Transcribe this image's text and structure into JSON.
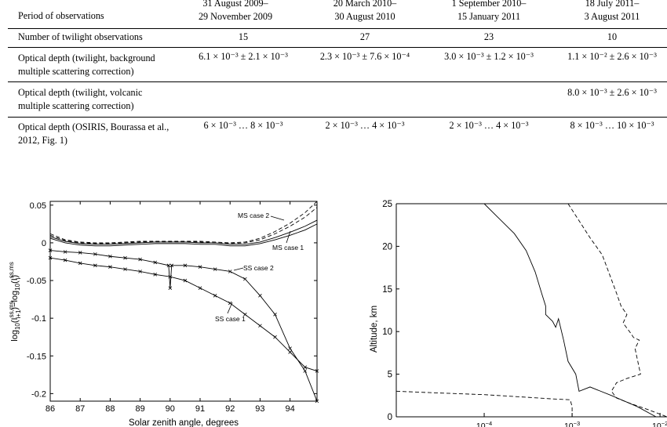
{
  "table": {
    "periods_label": "Period of observations",
    "periods": [
      [
        "31 August 2009–",
        "29 November 2009"
      ],
      [
        "20 March 2010–",
        "30 August 2010"
      ],
      [
        "1 September 2010–",
        "15 January 2011"
      ],
      [
        "18 July 2011–",
        "3 August 2011"
      ]
    ],
    "rows": [
      {
        "label": "Number of twilight observations",
        "values": [
          "15",
          "27",
          "23",
          "10"
        ]
      },
      {
        "label": "Optical depth (twilight, background multiple scattering correction)",
        "values": [
          "6.1 × 10⁻³ ± 2.1 × 10⁻³",
          "2.3 × 10⁻³ ± 7.6 × 10⁻⁴",
          "3.0 × 10⁻³ ± 1.2 × 10⁻³",
          "1.1 × 10⁻² ± 2.6 × 10⁻³"
        ]
      },
      {
        "label": "Optical depth (twilight, volcanic multiple scattering correction)",
        "values": [
          "",
          "",
          "",
          "8.0 × 10⁻³ ± 2.6 × 10⁻³"
        ]
      },
      {
        "label": "Optical depth (OSIRIS, Bourassa et al., 2012, Fig. 1)",
        "values": [
          "6 × 10⁻³ … 8 × 10⁻³",
          "2 × 10⁻³ … 4 × 10⁻³",
          "2 × 10⁻³ … 4 × 10⁻³",
          "8 × 10⁻³ … 10 × 10⁻³"
        ]
      }
    ]
  },
  "chart_data": [
    {
      "type": "line",
      "xlabel": "Solar zenith angle, degrees",
      "ylabel_base": "log",
      "ylabel_sub": "10",
      "ylabel_text": "(I",
      "ylabel_sup": "ss,ms",
      "ylabel_isub": "i+1",
      "ylabel_mid": ")−log",
      "ylabel_sub2": "10",
      "ylabel_text2": "(I",
      "ylabel_sup2": "ss,ms",
      "ylabel_isub2": "i",
      "ylabel_end": ")",
      "xlim": [
        86,
        94.9
      ],
      "ylim": [
        -0.21,
        0.055
      ],
      "xticks": [
        "86",
        "87",
        "88",
        "89",
        "90",
        "91",
        "92",
        "93",
        "94"
      ],
      "yticks": [
        "0.05",
        "0",
        "-0.05",
        "-0.1",
        "-0.15",
        "-0.2"
      ],
      "grid": false,
      "annotations": [
        "MS case 2",
        "MS case 1",
        "SS case 2",
        "SS case 1"
      ],
      "series": [
        {
          "x": [
            86,
            86.5,
            87,
            87.5,
            88,
            88.5,
            89,
            89.5,
            90,
            90.5,
            91,
            91.5,
            92,
            92.5,
            93,
            93.5,
            94,
            94.5,
            94.9
          ],
          "y": [
            0.012,
            0.004,
            0.001,
            0.0,
            0.0,
            0.001,
            0.002,
            0.002,
            0.002,
            0.002,
            0.002,
            0.001,
            0.0,
            0.001,
            0.006,
            0.015,
            0.026,
            0.04,
            0.055
          ],
          "style": "dashed"
        },
        {
          "x": [
            86,
            86.5,
            87,
            87.5,
            88,
            88.5,
            89,
            89.5,
            90,
            90.5,
            91,
            91.5,
            92,
            92.5,
            93,
            93.5,
            94,
            94.5,
            94.9
          ],
          "y": [
            0.01,
            0.003,
            0.0,
            -0.001,
            -0.001,
            0.0,
            0.001,
            0.001,
            0.001,
            0.001,
            0.001,
            0.0,
            -0.001,
            0.0,
            0.004,
            0.012,
            0.022,
            0.034,
            0.047
          ],
          "style": "dashed"
        },
        {
          "x": [
            86,
            86.5,
            87,
            87.5,
            88,
            88.5,
            89,
            89.5,
            90,
            90.5,
            91,
            91.5,
            92,
            92.5,
            93,
            93.5,
            94,
            94.5,
            94.9
          ],
          "y": [
            0.008,
            0.002,
            -0.001,
            -0.002,
            -0.002,
            -0.001,
            0.0,
            0.001,
            0.001,
            0.001,
            0.0,
            0.0,
            -0.002,
            -0.002,
            0.001,
            0.007,
            0.014,
            0.022,
            0.03
          ],
          "style": "solid"
        },
        {
          "x": [
            86,
            86.5,
            87,
            87.5,
            88,
            88.5,
            89,
            89.5,
            90,
            90.5,
            91,
            91.5,
            92,
            92.5,
            93,
            93.5,
            94,
            94.5,
            94.9
          ],
          "y": [
            0.006,
            0.0,
            -0.003,
            -0.004,
            -0.004,
            -0.003,
            -0.002,
            -0.001,
            -0.001,
            -0.001,
            -0.002,
            -0.002,
            -0.004,
            -0.004,
            -0.001,
            0.004,
            0.01,
            0.017,
            0.025
          ],
          "style": "solid"
        },
        {
          "x": [
            86,
            86.5,
            87,
            87.5,
            88,
            88.5,
            89,
            89.5,
            89.95,
            90,
            90.05,
            90.5,
            91,
            91.5,
            92,
            92.5,
            93,
            93.5,
            94,
            94.5,
            94.9
          ],
          "y": [
            -0.01,
            -0.012,
            -0.013,
            -0.015,
            -0.018,
            -0.02,
            -0.022,
            -0.026,
            -0.03,
            -0.06,
            -0.03,
            -0.03,
            -0.032,
            -0.035,
            -0.038,
            -0.048,
            -0.07,
            -0.095,
            -0.14,
            -0.17,
            -0.21
          ],
          "style": "marked",
          "label": "SS case 2"
        },
        {
          "x": [
            86,
            86.5,
            87,
            87.5,
            88,
            88.5,
            89,
            89.5,
            90,
            90.5,
            91,
            91.5,
            92,
            92.5,
            93,
            93.5,
            94,
            94.5,
            94.9
          ],
          "y": [
            -0.02,
            -0.023,
            -0.027,
            -0.03,
            -0.032,
            -0.035,
            -0.038,
            -0.042,
            -0.045,
            -0.05,
            -0.06,
            -0.07,
            -0.08,
            -0.095,
            -0.11,
            -0.125,
            -0.145,
            -0.165,
            -0.17
          ],
          "style": "marked",
          "label": "SS case 1"
        }
      ]
    },
    {
      "type": "line",
      "ylabel": "Altitude, km",
      "xscale": "log",
      "xlim": [
        1e-05,
        0.012
      ],
      "ylim": [
        0,
        25
      ],
      "yticks": [
        "0",
        "5",
        "10",
        "15",
        "20",
        "25"
      ],
      "xticks": [
        {
          "base": "10",
          "exp": "−4",
          "value": 0.0001
        },
        {
          "base": "10",
          "exp": "−3",
          "value": 0.001
        },
        {
          "base": "10",
          "exp": "−2",
          "value": 0.01
        }
      ],
      "grid": false,
      "series": [
        {
          "x": [
            0.0001,
            0.00014,
            0.00022,
            0.0003,
            0.00038,
            0.00045,
            0.0005,
            0.0005,
            0.0006,
            0.00065,
            0.0007,
            0.0008,
            0.0009,
            0.0011,
            0.0012,
            0.0016,
            0.0028,
            0.0055,
            0.009
          ],
          "y": [
            25,
            23.5,
            21.5,
            19.5,
            17,
            14.5,
            13,
            12,
            11.2,
            10.5,
            11.5,
            9,
            6.5,
            5,
            3,
            3.5,
            2.5,
            1.2,
            0
          ],
          "style": "solid"
        },
        {
          "x": [
            0.0009,
            0.0012,
            0.0016,
            0.0022,
            0.0026,
            0.0032,
            0.0036,
            0.0042,
            0.0038,
            0.0045,
            0.005,
            0.0058,
            0.0052,
            0.006,
            0.0042,
            0.0032,
            0.0028,
            0.0032,
            0.0045,
            0.0075,
            0.012
          ],
          "y": [
            25,
            23,
            21,
            19,
            17,
            14.5,
            13,
            12,
            11,
            10,
            9.3,
            9,
            8,
            5,
            4.5,
            4,
            3,
            2.2,
            1.6,
            0.8,
            0
          ],
          "style": "dashed"
        },
        {
          "x": [
            1e-05,
            3e-05,
            0.0001,
            0.0003,
            0.0006,
            0.00095,
            0.001,
            0.001
          ],
          "y": [
            3,
            2.8,
            2.6,
            2.3,
            2.1,
            2.0,
            1.2,
            0
          ],
          "style": "dashed"
        }
      ]
    }
  ]
}
